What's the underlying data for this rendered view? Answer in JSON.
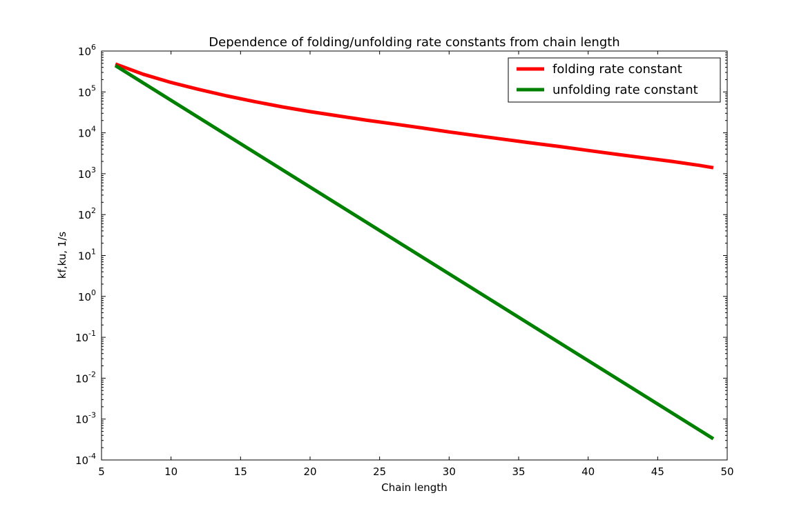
{
  "chart_data": {
    "type": "line",
    "title": "Dependence of folding/unfolding rate constants from chain length",
    "xlabel": "Chain length",
    "ylabel": "kf,ku, 1/s",
    "xlim": [
      5,
      50
    ],
    "ylim": [
      0.0001,
      1000000
    ],
    "yscale": "log",
    "grid": false,
    "legend_position": "top-right",
    "x_ticks": [
      5,
      10,
      15,
      20,
      25,
      30,
      35,
      40,
      45,
      50
    ],
    "x_tick_labels": [
      "5",
      "10",
      "15",
      "20",
      "25",
      "30",
      "35",
      "40",
      "45",
      "50"
    ],
    "y_ticks": [
      {
        "base": "10",
        "exp": "-4",
        "value": 0.0001
      },
      {
        "base": "10",
        "exp": "-3",
        "value": 0.001
      },
      {
        "base": "10",
        "exp": "-2",
        "value": 0.01
      },
      {
        "base": "10",
        "exp": "-1",
        "value": 0.1
      },
      {
        "base": "10",
        "exp": "0",
        "value": 1
      },
      {
        "base": "10",
        "exp": "1",
        "value": 10
      },
      {
        "base": "10",
        "exp": "2",
        "value": 100
      },
      {
        "base": "10",
        "exp": "3",
        "value": 1000
      },
      {
        "base": "10",
        "exp": "4",
        "value": 10000
      },
      {
        "base": "10",
        "exp": "5",
        "value": 100000
      },
      {
        "base": "10",
        "exp": "6",
        "value": 1000000
      }
    ],
    "series": [
      {
        "name": "folding rate constant",
        "color": "#ff0000",
        "x": [
          6,
          8,
          10,
          12,
          14,
          16,
          18,
          20,
          22,
          24,
          26,
          28,
          30,
          32,
          34,
          36,
          38,
          40,
          42,
          44,
          46,
          48,
          49
        ],
        "y": [
          480000,
          270000,
          170000,
          115000,
          80000,
          58000,
          43000,
          33000,
          26000,
          20500,
          16500,
          13200,
          10500,
          8500,
          6900,
          5600,
          4600,
          3700,
          3000,
          2450,
          2000,
          1600,
          1400
        ]
      },
      {
        "name": "unfolding rate constant",
        "color": "#008000",
        "x": [
          6,
          49
        ],
        "y": [
          440000,
          0.00033
        ]
      }
    ]
  }
}
